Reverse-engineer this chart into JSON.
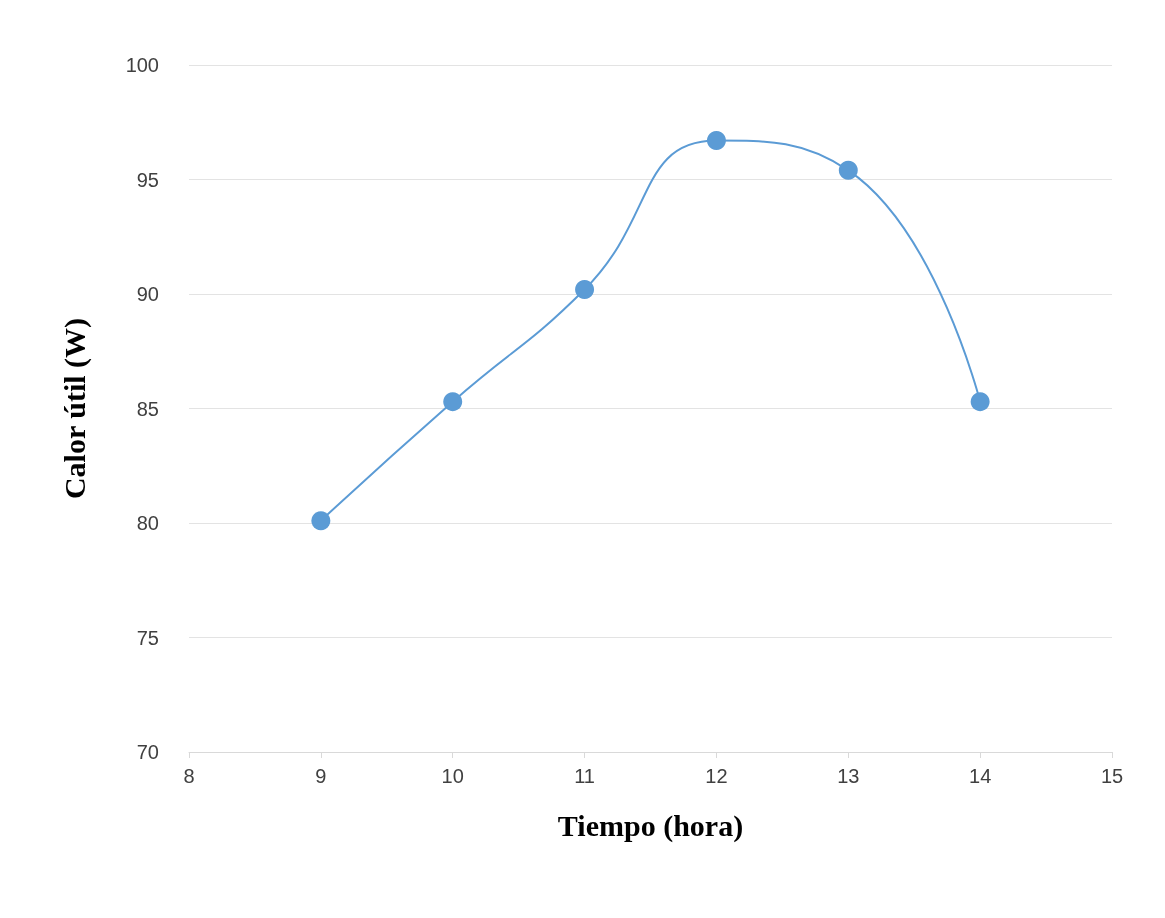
{
  "chart_data": {
    "type": "line",
    "xlabel": "Tiempo (hora)",
    "ylabel": "Calor útil (W)",
    "x": [
      9,
      10,
      11,
      12,
      13,
      14
    ],
    "series": [
      {
        "color": "#5b9bd5",
        "values": [
          80.1,
          85.3,
          90.2,
          96.7,
          95.4,
          85.3
        ]
      }
    ],
    "xlim": [
      8,
      15
    ],
    "xticks": [
      8,
      9,
      10,
      11,
      12,
      13,
      14,
      15
    ],
    "ylim": [
      70,
      100
    ],
    "yticks": [
      70,
      75,
      80,
      85,
      90,
      95,
      100
    ],
    "grid": "y",
    "marker": "circle",
    "line_style": "solid"
  }
}
